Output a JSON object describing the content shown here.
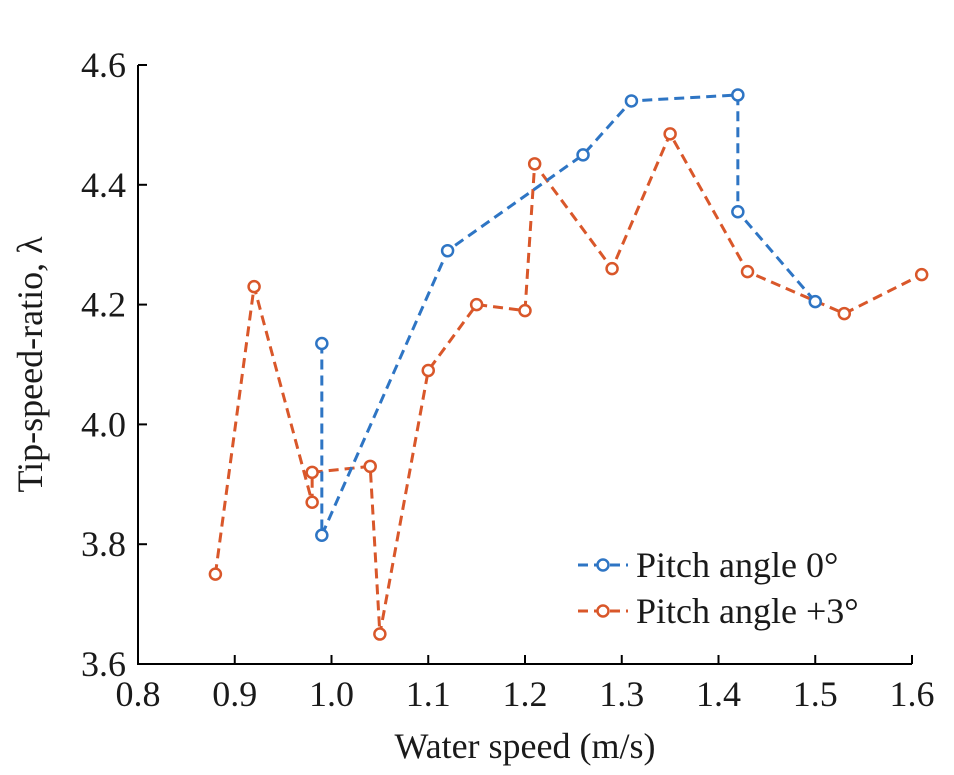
{
  "chart_data": {
    "type": "line",
    "xlabel": "Water speed (m/s)",
    "ylabel": "Tip-speed-ratio, λ",
    "xlim": [
      0.8,
      1.6
    ],
    "ylim": [
      3.6,
      4.6
    ],
    "xticks": [
      "0.8",
      "0.9",
      "1.0",
      "1.1",
      "1.2",
      "1.3",
      "1.4",
      "1.5",
      "1.6"
    ],
    "yticks": [
      "3.6",
      "3.8",
      "4.0",
      "4.2",
      "4.4",
      "4.6"
    ],
    "grid": false,
    "legend_position": "bottom-right",
    "series": [
      {
        "name": "Pitch angle 0°",
        "color": "#2e75c4",
        "marker": "open-circle",
        "line_style": "dashed",
        "x": [
          0.99,
          0.99,
          1.12,
          1.26,
          1.31,
          1.42,
          1.42,
          1.5
        ],
        "y": [
          4.135,
          3.815,
          4.29,
          4.45,
          4.54,
          4.55,
          4.355,
          4.205
        ]
      },
      {
        "name": "Pitch angle +3°",
        "color": "#d9572a",
        "marker": "open-circle",
        "line_style": "dashed",
        "x": [
          0.88,
          0.92,
          0.98,
          0.98,
          1.04,
          1.05,
          1.1,
          1.15,
          1.2,
          1.21,
          1.29,
          1.35,
          1.43,
          1.53,
          1.61
        ],
        "y": [
          3.75,
          4.23,
          3.87,
          3.92,
          3.93,
          3.65,
          4.09,
          4.2,
          4.19,
          4.435,
          4.26,
          4.485,
          4.255,
          4.185,
          4.25
        ]
      }
    ]
  }
}
